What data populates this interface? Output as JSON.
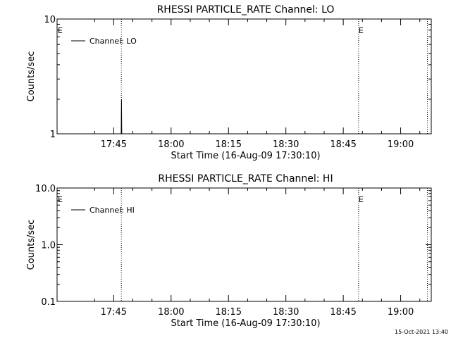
{
  "chart_data": [
    {
      "type": "line",
      "title": "RHESSI PARTICLE_RATE Channel: LO",
      "xlabel": "Start Time (16-Aug-09 17:30:10)",
      "ylabel": "Counts/sec",
      "yscale": "log",
      "ylim": [
        1,
        10
      ],
      "ytick_labels": [
        "1",
        "10"
      ],
      "xlim_minutes_after_1730": [
        0.2,
        98.0
      ],
      "xtick_labels": [
        "17:45",
        "18:00",
        "18:15",
        "18:30",
        "18:45",
        "19:00"
      ],
      "legend": {
        "entries": [
          "Channel: LO"
        ],
        "placement": "top-left"
      },
      "markers": [
        {
          "label": "E",
          "x": "17:30"
        },
        {
          "label": "E",
          "x": "18:49"
        }
      ],
      "dotted_lines_x": [
        "17:47",
        "18:49",
        "19:07"
      ],
      "series": [
        {
          "name": "Channel: LO",
          "x": [
            "17:46:58",
            "17:47:02",
            "17:47:06"
          ],
          "values": [
            1,
            2,
            1
          ]
        }
      ],
      "grid": false
    },
    {
      "type": "line",
      "title": "RHESSI PARTICLE_RATE Channel: HI",
      "xlabel": "Start Time (16-Aug-09 17:30:10)",
      "ylabel": "Counts/sec",
      "yscale": "log",
      "ylim": [
        0.1,
        10
      ],
      "ytick_labels": [
        "0.1",
        "1.0",
        "10.0"
      ],
      "xlim_minutes_after_1730": [
        0.2,
        98.0
      ],
      "xtick_labels": [
        "17:45",
        "18:00",
        "18:15",
        "18:30",
        "18:45",
        "19:00"
      ],
      "legend": {
        "entries": [
          "Channel: HI"
        ],
        "placement": "top-left"
      },
      "markers": [
        {
          "label": "E",
          "x": "17:30"
        },
        {
          "label": "E",
          "x": "18:49"
        }
      ],
      "dotted_lines_x": [
        "17:47",
        "18:49",
        "19:07"
      ],
      "series": [
        {
          "name": "Channel: HI",
          "x": [],
          "values": []
        }
      ],
      "grid": false
    }
  ],
  "footer": {
    "timestamp": "15-Oct-2021 13:40"
  }
}
